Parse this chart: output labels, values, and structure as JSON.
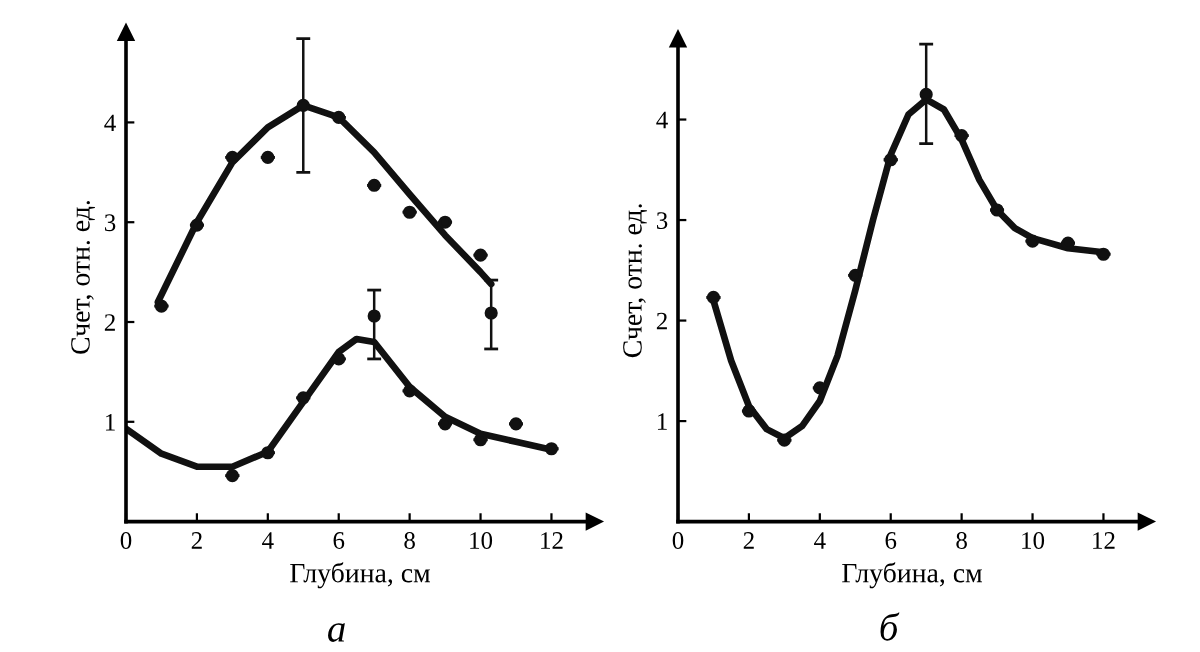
{
  "chart_data": [
    {
      "type": "scatter",
      "xlabel": "Глубина, см",
      "ylabel": "Счет, отн. ед.",
      "annotations": [
        "а"
      ],
      "xlim": [
        0,
        13.2
      ],
      "ylim": [
        0,
        4.9
      ],
      "xticks": [
        0,
        2,
        4,
        6,
        8,
        10,
        12
      ],
      "yticks": [
        1,
        2,
        3,
        4
      ],
      "grid": false,
      "legend": false,
      "series": [
        {
          "marker": "circle",
          "color": "#111111",
          "x": [
            1,
            2,
            3,
            4,
            5,
            6,
            7,
            8,
            9,
            10,
            10.3
          ],
          "values": [
            2.16,
            2.97,
            3.65,
            3.65,
            4.17,
            4.05,
            3.37,
            3.1,
            3.0,
            2.67,
            2.09
          ],
          "errors": [
            null,
            null,
            null,
            null,
            [
              3.5,
              4.84
            ],
            null,
            null,
            null,
            null,
            null,
            [
              1.73,
              2.42
            ]
          ]
        },
        {
          "type": "line",
          "marker": "none",
          "color": "#111111",
          "x": [
            0.9,
            2,
            3,
            4,
            5,
            6,
            7,
            8,
            9,
            10,
            10.3
          ],
          "values": [
            2.2,
            3.0,
            3.6,
            3.95,
            4.17,
            4.05,
            3.7,
            3.28,
            2.87,
            2.5,
            2.38
          ]
        },
        {
          "marker": "circle",
          "color": "#111111",
          "x": [
            3,
            4,
            5,
            6,
            7,
            8,
            9,
            10,
            11,
            12
          ],
          "values": [
            0.46,
            0.69,
            1.24,
            1.63,
            2.06,
            1.31,
            0.98,
            0.82,
            0.98,
            0.73
          ],
          "errors": [
            null,
            null,
            null,
            null,
            [
              1.63,
              2.32
            ],
            null,
            null,
            null,
            null,
            null
          ]
        },
        {
          "type": "line",
          "marker": "none",
          "color": "#111111",
          "x": [
            0,
            1,
            2,
            3,
            4,
            5,
            6,
            6.5,
            7,
            8,
            9,
            10,
            11,
            12
          ],
          "values": [
            0.93,
            0.68,
            0.55,
            0.55,
            0.7,
            1.2,
            1.7,
            1.83,
            1.8,
            1.35,
            1.05,
            0.88,
            0.8,
            0.72
          ]
        }
      ]
    },
    {
      "type": "scatter",
      "xlabel": "Глубина, см",
      "ylabel": "Счет, отн. ед.",
      "annotations": [
        "б"
      ],
      "xlim": [
        0,
        13.2
      ],
      "ylim": [
        0,
        4.8
      ],
      "xticks": [
        0,
        2,
        4,
        6,
        8,
        10,
        12
      ],
      "yticks": [
        1,
        2,
        3,
        4
      ],
      "grid": false,
      "legend": false,
      "series": [
        {
          "marker": "circle",
          "color": "#111111",
          "x": [
            1,
            2,
            3,
            4,
            5,
            6,
            7,
            8,
            9,
            10,
            11,
            12
          ],
          "values": [
            2.23,
            1.1,
            0.81,
            1.33,
            2.45,
            3.6,
            4.25,
            3.84,
            3.1,
            2.79,
            2.77,
            2.66
          ],
          "errors": [
            null,
            null,
            null,
            null,
            null,
            null,
            [
              3.76,
              4.75
            ],
            null,
            null,
            null,
            null,
            null
          ]
        },
        {
          "type": "line",
          "marker": "none",
          "color": "#111111",
          "x": [
            1,
            1.5,
            2,
            2.5,
            3,
            3.5,
            4,
            4.5,
            5,
            5.5,
            6,
            6.5,
            7,
            7.5,
            8,
            8.5,
            9,
            9.5,
            10,
            11,
            12
          ],
          "values": [
            2.2,
            1.6,
            1.15,
            0.92,
            0.83,
            0.95,
            1.2,
            1.65,
            2.3,
            3.0,
            3.65,
            4.05,
            4.2,
            4.1,
            3.8,
            3.4,
            3.1,
            2.92,
            2.82,
            2.72,
            2.68
          ]
        }
      ]
    }
  ]
}
